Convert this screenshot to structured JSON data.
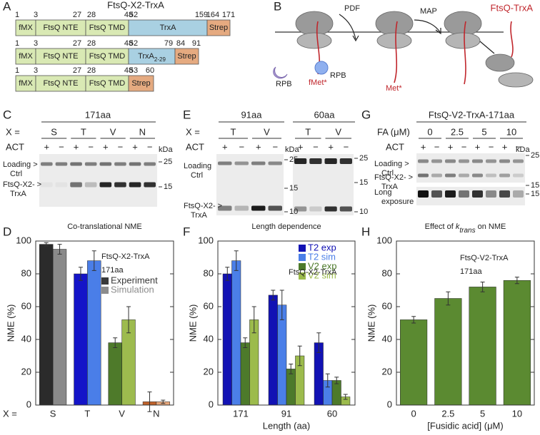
{
  "panel_letters": [
    "A",
    "B",
    "C",
    "D",
    "E",
    "F",
    "G",
    "H"
  ],
  "panel_a": {
    "title": "FtsQ-X2-TrxA",
    "constructs": [
      {
        "segments": [
          {
            "label": "fMX",
            "color": "#d9e9b4"
          },
          {
            "label": "FtsQ NTE",
            "color": "#d9e9b4"
          },
          {
            "label": "FtsQ TMD",
            "color": "#d9e9b4"
          },
          {
            "label": "TrxA",
            "color": "#a9d0e2"
          },
          {
            "label": "Strep",
            "color": "#e5aa80"
          }
        ],
        "positions": [
          1,
          3,
          27,
          28,
          48,
          52,
          159,
          164,
          171
        ]
      },
      {
        "segments": [
          {
            "label": "fMX",
            "color": "#d9e9b4"
          },
          {
            "label": "FtsQ NTE",
            "color": "#d9e9b4"
          },
          {
            "label": "FtsQ TMD",
            "color": "#d9e9b4"
          },
          {
            "label": "TrxA",
            "subscript": "2-29",
            "color": "#a9d0e2"
          },
          {
            "label": "Strep",
            "color": "#e5aa80"
          }
        ],
        "positions": [
          1,
          3,
          27,
          28,
          48,
          52,
          79,
          84,
          91
        ]
      },
      {
        "segments": [
          {
            "label": "fMX",
            "color": "#d9e9b4"
          },
          {
            "label": "FtsQ NTE",
            "color": "#d9e9b4"
          },
          {
            "label": "FtsQ TMD",
            "color": "#d9e9b4"
          },
          {
            "label": "Strep",
            "color": "#e5aa80"
          }
        ],
        "positions": [
          1,
          3,
          27,
          28,
          48,
          53,
          60
        ]
      }
    ]
  },
  "panel_b": {
    "enzymes": [
      "PDF",
      "MAP"
    ],
    "product": "FtsQ-TrxA",
    "rpb": [
      "RPB",
      "RPB"
    ],
    "residues": [
      "fMet*",
      "Met*"
    ]
  },
  "panel_c": {
    "header": "171aa",
    "x_label": "X =",
    "lanes": [
      "S",
      "T",
      "V",
      "N"
    ],
    "act_label": "ACT",
    "act": [
      "+",
      "−",
      "+",
      "−",
      "+",
      "−",
      "+",
      "−"
    ],
    "unit": "kDa",
    "markers": [
      "25",
      "15"
    ],
    "rows": [
      [
        "Loading >",
        "Ctrl"
      ],
      [
        "FtsQ-X2- >",
        "TrxA"
      ]
    ]
  },
  "panel_e": {
    "headers": [
      "91aa",
      "60aa"
    ],
    "x_label": "X =",
    "lanes": [
      "T",
      "V",
      "T",
      "V"
    ],
    "act_label": "ACT",
    "act": [
      "+",
      "−",
      "+",
      "−",
      "+",
      "−",
      "+",
      "−"
    ],
    "unit": "kDa",
    "markers": [
      "25",
      "15",
      "10"
    ],
    "rows": [
      [
        "Loading",
        "Ctrl"
      ],
      [
        "FtsQ-X2- >",
        "TrxA"
      ]
    ]
  },
  "panel_g": {
    "header": "FtsQ-V2-TrxA-171aa",
    "x_label": "FA (μM)",
    "lanes": [
      "0",
      "2.5",
      "5",
      "10"
    ],
    "act_label": "ACT",
    "act": [
      "+",
      "−",
      "+",
      "−",
      "+",
      "−",
      "+",
      "−"
    ],
    "unit": "kDa",
    "markers": [
      "25",
      "15",
      "15"
    ],
    "rows": [
      [
        "Loading >",
        "Ctrl"
      ],
      [
        "FtsQ-X2- >",
        "TrxA"
      ],
      [
        "Long",
        "exposure"
      ]
    ]
  },
  "chart_data": [
    {
      "type": "bar",
      "title": "Co-translational NME",
      "annotations": [
        "FtsQ-X2-TrxA",
        "171aa"
      ],
      "y_label": "NME (%)",
      "x_prefix": "X =",
      "categories": [
        "S",
        "T",
        "V",
        "N"
      ],
      "series": [
        {
          "name": "Experiment",
          "color": "#3a3a3a",
          "colors": [
            "#2b2b2b",
            "#1414c8",
            "#4e7a2a",
            "#c0622a"
          ],
          "values": [
            98,
            80,
            38,
            2
          ],
          "errors": [
            1,
            4,
            3,
            6
          ]
        },
        {
          "name": "Simulation",
          "color": "#8c8c8c",
          "colors": [
            "#8a8a8a",
            "#4a7ee8",
            "#9dbb4e",
            "#e8a87c"
          ],
          "values": [
            95,
            88,
            52,
            2
          ],
          "errors": [
            3,
            6,
            8,
            1
          ]
        }
      ],
      "ylim": [
        0,
        100
      ],
      "yticks": [
        0,
        20,
        40,
        60,
        80,
        100
      ],
      "legend": "upper right"
    },
    {
      "type": "bar",
      "title": "Length dependence",
      "annotations": [
        "FtsQ-X2-TrxA"
      ],
      "y_label": "NME (%)",
      "x_label": "Length (aa)",
      "categories": [
        "171",
        "91",
        "60"
      ],
      "series": [
        {
          "name": "T2 exp",
          "color": "#1212b4",
          "values": [
            80,
            67,
            38
          ],
          "errors": [
            4,
            3,
            6
          ]
        },
        {
          "name": "T2 sim",
          "color": "#4b7fe8",
          "values": [
            88,
            61,
            15
          ],
          "errors": [
            6,
            9,
            4
          ]
        },
        {
          "name": "V2 exp",
          "color": "#4d7a2b",
          "values": [
            38,
            22,
            15
          ],
          "errors": [
            3,
            3,
            2
          ]
        },
        {
          "name": "V2 sim",
          "color": "#9cbb4c",
          "values": [
            52,
            30,
            5
          ],
          "errors": [
            8,
            6,
            1.5
          ]
        }
      ],
      "ylim": [
        0,
        100
      ],
      "yticks": [
        0,
        20,
        40,
        60,
        80,
        100
      ],
      "legend": "upper right"
    },
    {
      "type": "bar",
      "title": [
        "Effect of ",
        "k",
        "trans",
        " on NME"
      ],
      "annotations": [
        "FtsQ-V2-TrxA",
        "171aa"
      ],
      "y_label": "NME (%)",
      "x_label": "[Fusidic acid] (μM)",
      "categories": [
        "0",
        "2.5",
        "5",
        "10"
      ],
      "values": [
        52,
        65,
        72,
        76
      ],
      "errors": [
        2,
        4,
        3,
        2
      ],
      "color": "#5b8a31",
      "ylim": [
        0,
        100
      ],
      "yticks": [
        0,
        20,
        40,
        60,
        80,
        100
      ]
    }
  ]
}
